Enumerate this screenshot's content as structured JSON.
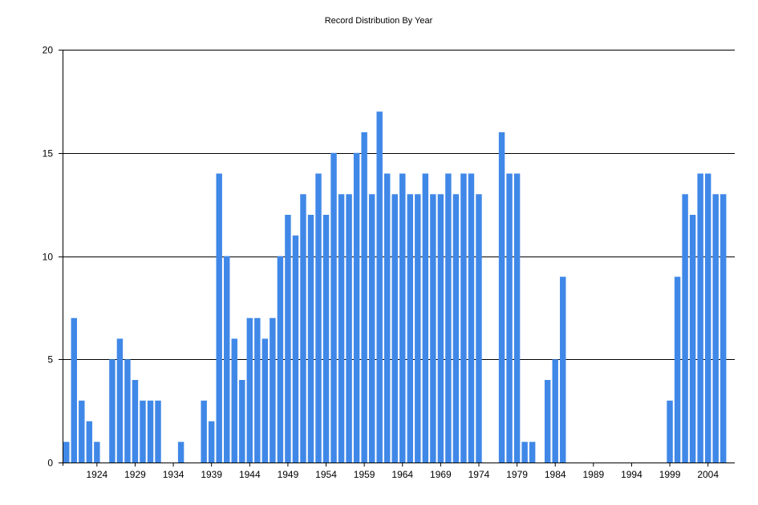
{
  "chart_data": {
    "type": "bar",
    "title": "Record Distribution By Year",
    "xlabel": "",
    "ylabel": "",
    "ylim": [
      0,
      20
    ],
    "yticks": [
      0,
      5,
      10,
      15,
      20
    ],
    "xlim": [
      1919.5,
      2007.5
    ],
    "xticks": [
      1924,
      1929,
      1934,
      1939,
      1944,
      1949,
      1954,
      1959,
      1964,
      1969,
      1974,
      1979,
      1984,
      1989,
      1994,
      1999,
      2004
    ],
    "grid": "horizontal",
    "legend": "none",
    "bar_color": "#4088e8",
    "categories": [
      1920,
      1921,
      1922,
      1923,
      1924,
      1925,
      1926,
      1927,
      1928,
      1929,
      1930,
      1931,
      1932,
      1933,
      1934,
      1935,
      1936,
      1937,
      1938,
      1939,
      1940,
      1941,
      1942,
      1943,
      1944,
      1945,
      1946,
      1947,
      1948,
      1949,
      1950,
      1951,
      1952,
      1953,
      1954,
      1955,
      1956,
      1957,
      1958,
      1959,
      1960,
      1961,
      1962,
      1963,
      1964,
      1965,
      1966,
      1967,
      1968,
      1969,
      1970,
      1971,
      1972,
      1973,
      1974,
      1975,
      1976,
      1977,
      1978,
      1979,
      1980,
      1981,
      1982,
      1983,
      1984,
      1985,
      1986,
      1987,
      1988,
      1989,
      1990,
      1991,
      1992,
      1993,
      1994,
      1995,
      1996,
      1997,
      1998,
      1999,
      2000,
      2001,
      2002,
      2003,
      2004,
      2005,
      2006,
      2007
    ],
    "values": [
      1,
      7,
      3,
      2,
      1,
      0,
      5,
      6,
      5,
      4,
      3,
      3,
      3,
      0,
      0,
      1,
      0,
      0,
      3,
      2,
      14,
      10,
      6,
      4,
      7,
      7,
      6,
      7,
      10,
      12,
      11,
      13,
      12,
      14,
      12,
      15,
      13,
      13,
      15,
      16,
      13,
      17,
      14,
      13,
      14,
      13,
      13,
      14,
      13,
      13,
      14,
      13,
      14,
      14,
      13,
      0,
      0,
      16,
      14,
      14,
      1,
      1,
      0,
      4,
      5,
      9,
      0,
      0,
      0,
      0,
      0,
      0,
      0,
      0,
      0,
      0,
      0,
      0,
      0,
      3,
      9,
      13,
      12,
      14,
      14,
      13,
      13,
      0
    ]
  }
}
